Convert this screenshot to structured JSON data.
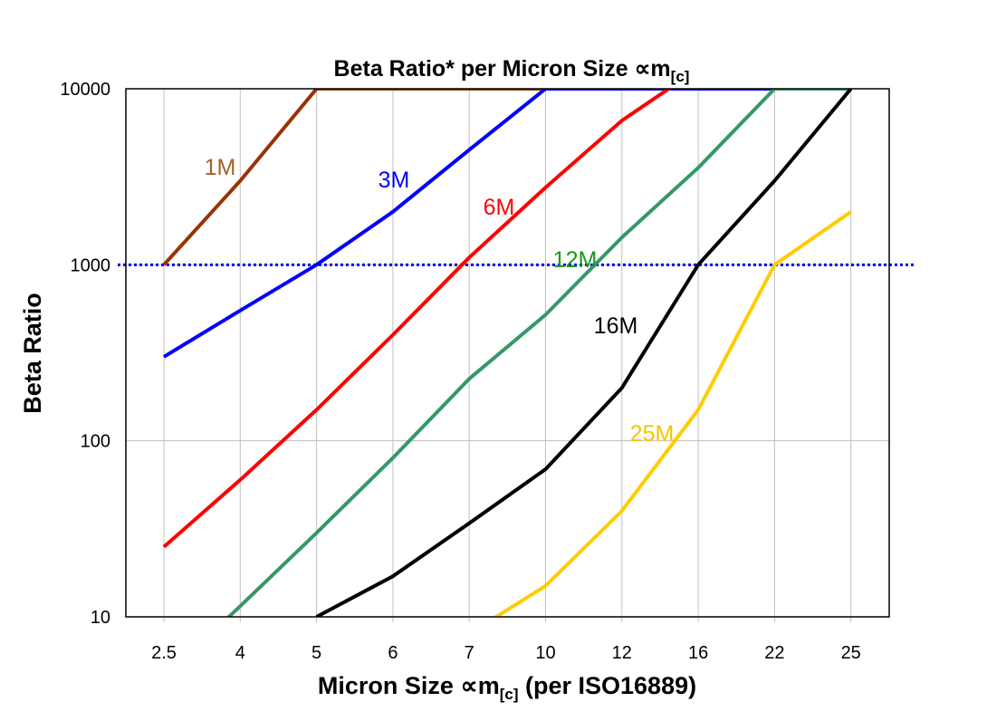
{
  "chart_data": {
    "type": "line",
    "title": "Beta Ratio* per Micron Size ∝m",
    "title_subscript": "[c]",
    "xlabel": "Micron Size ∝m",
    "xlabel_subscript": "[c]",
    "xlabel_suffix": " (per ISO16889)",
    "ylabel": "Beta Ratio",
    "y_scale": "log",
    "ylim": [
      10,
      10000
    ],
    "grid": true,
    "categories": [
      "2.5",
      "4",
      "5",
      "6",
      "7",
      "10",
      "12",
      "16",
      "22",
      "25"
    ],
    "y_ticks": [
      "10",
      "100",
      "1000",
      "10000"
    ],
    "reference_line": {
      "value": 1000,
      "color": "#0000FF",
      "style": "dotted"
    },
    "series": [
      {
        "name": "1M",
        "color": "#993300",
        "label_color": "#A0622D",
        "values": [
          1000,
          3000,
          10000,
          10000,
          10000,
          10000,
          10000,
          10000,
          10000,
          10000
        ]
      },
      {
        "name": "3M",
        "color": "#0000FF",
        "label_color": "#0000FF",
        "values": [
          300,
          550,
          1000,
          2000,
          4500,
          10000,
          10000,
          10000,
          10000,
          10000
        ]
      },
      {
        "name": "6M",
        "color": "#FF0000",
        "label_color": "#FF0000",
        "values": [
          25,
          60,
          150,
          400,
          1100,
          2750,
          6600,
          13000,
          10000,
          10000
        ]
      },
      {
        "name": "12M",
        "color": "#339966",
        "label_color": "#1A9A1A",
        "values": [
          4.5,
          11.5,
          30,
          80,
          225,
          520,
          1430,
          3560,
          10000,
          10000
        ]
      },
      {
        "name": "16M",
        "color": "#000000",
        "label_color": "#000000",
        "values": [
          null,
          null,
          10,
          17,
          34,
          69,
          200,
          1000,
          3000,
          10000
        ]
      },
      {
        "name": "25M",
        "color": "#FFCC00",
        "label_color": "#F5C400",
        "values": [
          null,
          null,
          null,
          null,
          8,
          15,
          40,
          150,
          1000,
          2000
        ]
      }
    ]
  }
}
